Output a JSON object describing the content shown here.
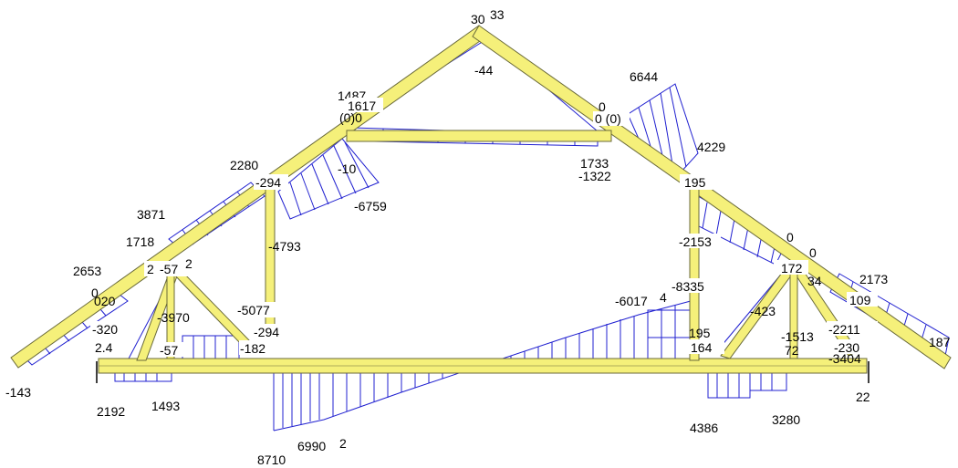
{
  "colors": {
    "member_fill": "#f5f07a",
    "member_edge": "#6a6a3a",
    "diagram": "#2020d0",
    "text": "#000000"
  },
  "labels": {
    "apex_left": "30",
    "apex_right": "33",
    "apex_inner": "-44",
    "collar_left_top": "1487",
    "collar_left": "1617",
    "collar_left_sub": "(0)0",
    "collar_mid": "-10",
    "collar_right_top": "0",
    "collar_right_sub": "0 (0)",
    "load_top_right": "6644",
    "right_4229": "4229",
    "right_1733": "1733",
    "right_1322": "-1322",
    "right_195_top": "195",
    "left_2280": "2280",
    "left_294_top": "-294",
    "left_6759": "-6759",
    "left_3871": "3871",
    "left_1718": "1718",
    "left_2653": "2653",
    "left_2": "2",
    "left_57_top": "-57",
    "left_2b": "2",
    "left_4793": "-4793",
    "left_3970": "-3970",
    "left_5077": "-5077",
    "left_294_bot": "-294",
    "left_182": "-182",
    "left_320": "-320",
    "left_24": "2.4",
    "left_0": "0",
    "left_020": "020",
    "left_57_bot": "-57",
    "left_143": "-143",
    "left_2192": "2192",
    "left_1493": "1493",
    "bot_8710": "8710",
    "bot_6990": "6990",
    "bot_2": "2",
    "right_2153": "-2153",
    "right_8335": "-8335",
    "right_6017": "-6017",
    "right_4": "4",
    "right_195_bot": "195",
    "right_164": "164",
    "right_0a": "0",
    "right_0b": "0",
    "right_172": "172",
    "right_34": "34",
    "right_423": "-423",
    "right_2173": "2173",
    "right_109": "109",
    "right_2211": "-2211",
    "right_1513": "-1513",
    "right_230": "-230",
    "right_72": "72",
    "right_3404": "-3404",
    "right_187": "187",
    "right_22": "22",
    "right_4386": "4386",
    "right_3280": "3280"
  }
}
